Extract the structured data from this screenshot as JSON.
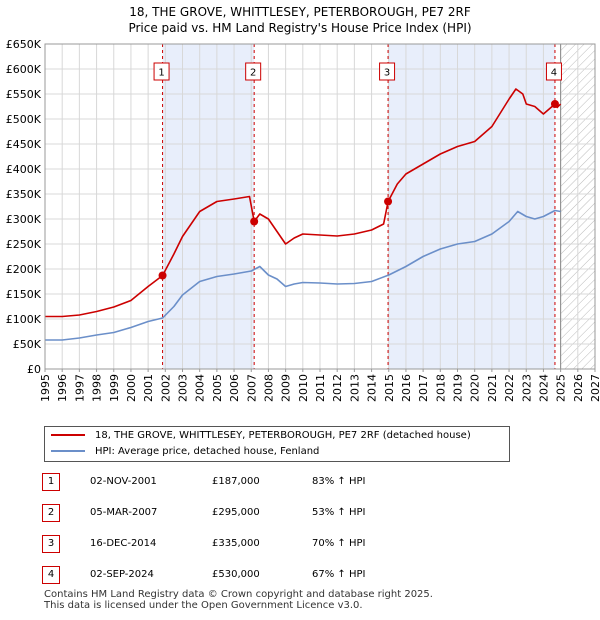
{
  "title_line1": "18, THE GROVE, WHITTLESEY, PETERBOROUGH, PE7 2RF",
  "title_line2": "Price paid vs. HM Land Registry's House Price Index (HPI)",
  "chart_data": {
    "type": "line",
    "title": "18, THE GROVE, WHITTLESEY, PETERBOROUGH, PE7 2RF — Price paid vs. HM Land Registry's House Price Index (HPI)",
    "xlim": [
      1995,
      2027
    ],
    "ylim": [
      0,
      650000
    ],
    "x_ticks": [
      "1995",
      "1996",
      "1997",
      "1998",
      "1999",
      "2000",
      "2001",
      "2002",
      "2003",
      "2004",
      "2005",
      "2006",
      "2007",
      "2008",
      "2009",
      "2010",
      "2011",
      "2012",
      "2013",
      "2014",
      "2015",
      "2016",
      "2017",
      "2018",
      "2019",
      "2020",
      "2021",
      "2022",
      "2023",
      "2024",
      "2025",
      "2026",
      "2027"
    ],
    "y_ticks": [
      {
        "value": 0,
        "label": "£0"
      },
      {
        "value": 50000,
        "label": "£50K"
      },
      {
        "value": 100000,
        "label": "£100K"
      },
      {
        "value": 150000,
        "label": "£150K"
      },
      {
        "value": 200000,
        "label": "£200K"
      },
      {
        "value": 250000,
        "label": "£250K"
      },
      {
        "value": 300000,
        "label": "£300K"
      },
      {
        "value": 350000,
        "label": "£350K"
      },
      {
        "value": 400000,
        "label": "£400K"
      },
      {
        "value": 450000,
        "label": "£450K"
      },
      {
        "value": 500000,
        "label": "£500K"
      },
      {
        "value": 550000,
        "label": "£550K"
      },
      {
        "value": 600000,
        "label": "£600K"
      },
      {
        "value": 650000,
        "label": "£650K"
      }
    ],
    "shaded_periods": [
      [
        2001.84,
        2007.17
      ],
      [
        2014.96,
        2024.67
      ]
    ],
    "forecast_start": 2025.0,
    "series": [
      {
        "name": "18, THE GROVE, WHITTLESEY, PETERBOROUGH, PE7 2RF (detached house)",
        "color": "#cc0000",
        "x": [
          1995,
          1996,
          1997,
          1998,
          1999,
          2000,
          2001,
          2001.84,
          2002.5,
          2003,
          2003.5,
          2004,
          2005,
          2006,
          2006.9,
          2007.17,
          2007.5,
          2008,
          2008.5,
          2009,
          2009.5,
          2010,
          2011,
          2012,
          2013,
          2014,
          2014.7,
          2014.96,
          2015.5,
          2016,
          2017,
          2018,
          2019,
          2020,
          2021,
          2022,
          2022.4,
          2022.8,
          2023,
          2023.5,
          2024,
          2024.67,
          2024.8,
          2025.0
        ],
        "y": [
          105000,
          105000,
          108000,
          115000,
          124000,
          137000,
          165000,
          187000,
          230000,
          265000,
          290000,
          315000,
          335000,
          340000,
          345000,
          295000,
          310000,
          300000,
          275000,
          250000,
          262000,
          270000,
          268000,
          266000,
          270000,
          278000,
          290000,
          335000,
          370000,
          390000,
          410000,
          430000,
          445000,
          455000,
          485000,
          540000,
          560000,
          550000,
          530000,
          525000,
          510000,
          530000,
          523000,
          530000
        ]
      },
      {
        "name": "HPI: Average price, detached house, Fenland",
        "color": "#6b8fc9",
        "x": [
          1995,
          1996,
          1997,
          1998,
          1999,
          2000,
          2001,
          2001.84,
          2002.5,
          2003,
          2004,
          2005,
          2006,
          2007,
          2007.5,
          2008,
          2008.5,
          2009,
          2009.5,
          2010,
          2011,
          2012,
          2013,
          2014,
          2015,
          2016,
          2017,
          2018,
          2019,
          2020,
          2021,
          2022,
          2022.5,
          2023,
          2023.5,
          2024,
          2024.67,
          2025.0
        ],
        "y": [
          58000,
          58000,
          62000,
          68000,
          73000,
          83000,
          95000,
          102000,
          125000,
          148000,
          175000,
          185000,
          190000,
          196000,
          205000,
          188000,
          180000,
          165000,
          170000,
          173000,
          172000,
          170000,
          171000,
          175000,
          188000,
          205000,
          225000,
          240000,
          250000,
          255000,
          270000,
          295000,
          315000,
          305000,
          300000,
          305000,
          317000,
          315000
        ]
      }
    ],
    "sales": [
      {
        "label": "1",
        "x": 2001.84,
        "y": 187000
      },
      {
        "label": "2",
        "x": 2007.17,
        "y": 295000
      },
      {
        "label": "3",
        "x": 2014.96,
        "y": 335000
      },
      {
        "label": "4",
        "x": 2024.67,
        "y": 530000
      }
    ]
  },
  "legend": {
    "property_label": "18, THE GROVE, WHITTLESEY, PETERBOROUGH, PE7 2RF (detached house)",
    "hpi_label": "HPI: Average price, detached house, Fenland",
    "property_color": "#cc0000",
    "hpi_color": "#6b8fc9"
  },
  "sales_table": [
    {
      "num": "1",
      "date": "02-NOV-2001",
      "price": "£187,000",
      "hpi": "83% ↑ HPI"
    },
    {
      "num": "2",
      "date": "05-MAR-2007",
      "price": "£295,000",
      "hpi": "53% ↑ HPI"
    },
    {
      "num": "3",
      "date": "16-DEC-2014",
      "price": "£335,000",
      "hpi": "70% ↑ HPI"
    },
    {
      "num": "4",
      "date": "02-SEP-2024",
      "price": "£530,000",
      "hpi": "67% ↑ HPI"
    }
  ],
  "footer_line1": "Contains HM Land Registry data © Crown copyright and database right 2025.",
  "footer_line2": "This data is licensed under the Open Government Licence v3.0."
}
